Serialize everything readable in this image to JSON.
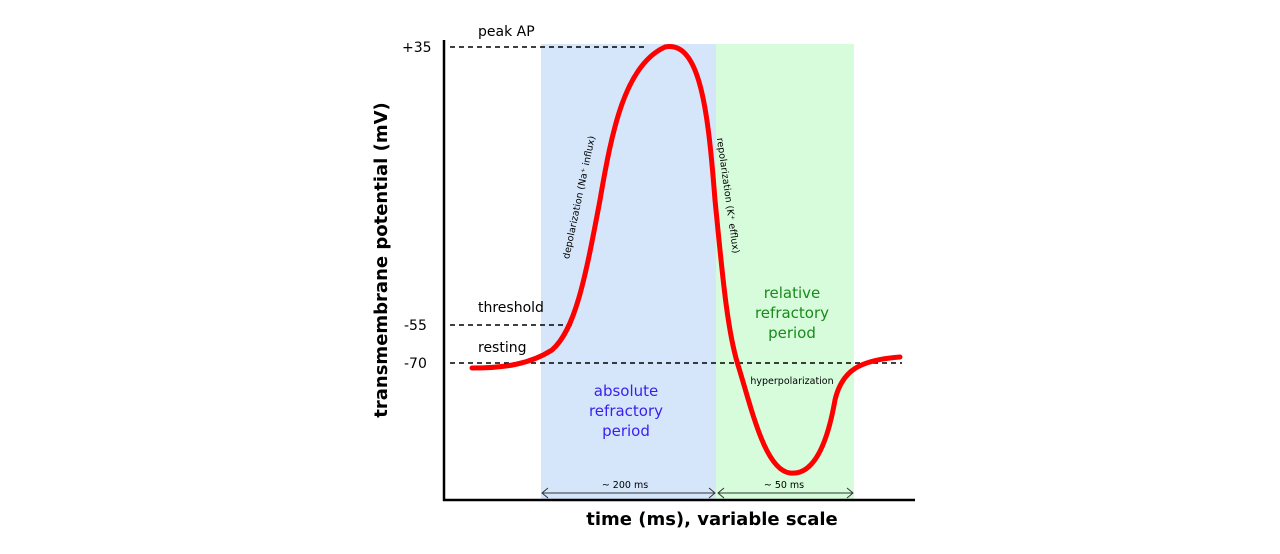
{
  "axes": {
    "y_title": "transmembrane potential (mV)",
    "x_title": "time (ms), variable scale",
    "y_ticks": [
      "+35",
      "-55",
      "-70"
    ]
  },
  "lines": {
    "peak": "peak AP",
    "threshold": "threshold",
    "resting": "resting"
  },
  "phases": {
    "depolarization": "depolarization (Na⁺ influx)",
    "repolarization": "repolarization (K⁺ efflux)",
    "hyperpolarization": "hyperpolarization"
  },
  "regions": {
    "absolute": {
      "line1": "absolute",
      "line2": "refractory",
      "line3": "period",
      "duration": "~ 200 ms",
      "color": "#d5e6fb",
      "text_color": "#3a1ef0"
    },
    "relative": {
      "line1": "relative",
      "line2": "refractory",
      "line3": "period",
      "duration": "~ 50 ms",
      "color": "#d6fcdc",
      "text_color": "#1a8a1a"
    }
  },
  "curve_color": "#ff0000"
}
